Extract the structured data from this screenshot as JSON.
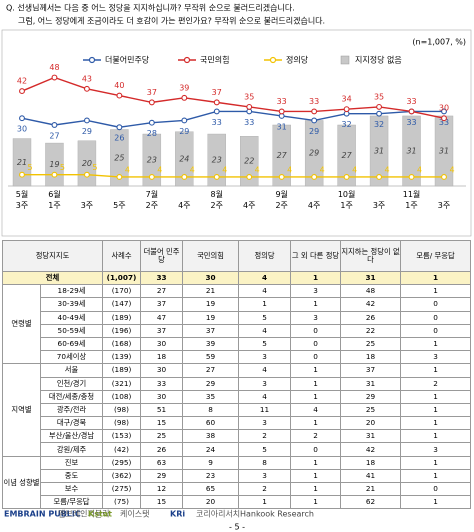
{
  "question": [
    "Q. 선생님께서는 다음 중 어느 정당을 지지하십니까? 무작위 순으로 불러드리겠습니다.",
    "그럼, 어느 정당에게 조금이라도 더 호감이 가는 편인가요? 무작위 순으로 불러드리겠습니다."
  ],
  "chart_data": {
    "type": "line-bar",
    "note": "(n=1,007, %)",
    "categories": [
      "5월 3주",
      "6월 1주",
      "3주",
      "5주",
      "7월 2주",
      "4주",
      "8월 2주",
      "4주",
      "9월 2주",
      "4주",
      "10월 1주",
      "3주",
      "11월 1주",
      "3주"
    ],
    "ylim": [
      0,
      50
    ],
    "series": [
      {
        "name": "더불어민주당",
        "color": "#2e5aa8",
        "kind": "line",
        "values": [
          30,
          27,
          29,
          26,
          28,
          29,
          33,
          33,
          31,
          29,
          32,
          32,
          33,
          33
        ]
      },
      {
        "name": "국민의힘",
        "color": "#d42a2a",
        "kind": "line",
        "values": [
          42,
          48,
          43,
          40,
          37,
          39,
          37,
          35,
          33,
          33,
          34,
          35,
          33,
          30
        ]
      },
      {
        "name": "정의당",
        "color": "#f2c200",
        "kind": "line",
        "values": [
          5,
          5,
          5,
          4,
          4,
          4,
          4,
          4,
          4,
          4,
          4,
          4,
          4,
          4
        ]
      },
      {
        "name": "지지정당 없음",
        "color": "#c8c8c8",
        "kind": "bar",
        "values": [
          21,
          19,
          20,
          25,
          23,
          24,
          23,
          22,
          27,
          29,
          27,
          31,
          31,
          31
        ]
      }
    ]
  },
  "table": {
    "header": [
      "정당지지도",
      "사례수",
      "더불어 민주당",
      "국민의힘",
      "정의당",
      "그 외 다른 정당",
      "지지하는 정당이 없다",
      "모름/ 무응답"
    ],
    "total": [
      "전체",
      "(1,007)",
      "33",
      "30",
      "4",
      "1",
      "31",
      "1"
    ],
    "groups": [
      {
        "name": "연령별",
        "rows": [
          [
            "18-29세",
            "(170)",
            "27",
            "21",
            "4",
            "3",
            "48",
            "1"
          ],
          [
            "30-39세",
            "(147)",
            "37",
            "19",
            "1",
            "1",
            "42",
            "0"
          ],
          [
            "40-49세",
            "(189)",
            "47",
            "19",
            "5",
            "3",
            "26",
            "0"
          ],
          [
            "50-59세",
            "(196)",
            "37",
            "37",
            "4",
            "0",
            "22",
            "0"
          ],
          [
            "60-69세",
            "(168)",
            "30",
            "39",
            "5",
            "0",
            "25",
            "1"
          ],
          [
            "70세이상",
            "(139)",
            "18",
            "59",
            "3",
            "0",
            "18",
            "3"
          ]
        ]
      },
      {
        "name": "지역별",
        "rows": [
          [
            "서울",
            "(189)",
            "30",
            "27",
            "4",
            "1",
            "37",
            "1"
          ],
          [
            "인천/경기",
            "(321)",
            "33",
            "29",
            "3",
            "1",
            "31",
            "2"
          ],
          [
            "대전/세종/충청",
            "(108)",
            "30",
            "35",
            "4",
            "1",
            "29",
            "1"
          ],
          [
            "광주/전라",
            "(98)",
            "51",
            "8",
            "11",
            "4",
            "25",
            "1"
          ],
          [
            "대구/경북",
            "(98)",
            "15",
            "60",
            "3",
            "1",
            "20",
            "1"
          ],
          [
            "부산/울산/경남",
            "(153)",
            "25",
            "38",
            "2",
            "2",
            "31",
            "1"
          ],
          [
            "강원/제주",
            "(42)",
            "26",
            "24",
            "5",
            "0",
            "42",
            "3"
          ]
        ]
      },
      {
        "name": "이념 성향별",
        "rows": [
          [
            "진보",
            "(295)",
            "63",
            "9",
            "8",
            "1",
            "18",
            "1"
          ],
          [
            "중도",
            "(362)",
            "29",
            "23",
            "3",
            "1",
            "41",
            "1"
          ],
          [
            "보수",
            "(275)",
            "12",
            "65",
            "2",
            "1",
            "21",
            "0"
          ],
          [
            "모름/무응답",
            "(75)",
            "15",
            "20",
            "1",
            "1",
            "62",
            "1"
          ]
        ]
      }
    ]
  },
  "footer": {
    "logos": [
      "EMBRAIN PUBLIC",
      "엠브레인퍼블릭",
      "Kstat",
      "케이스탯",
      "KRi",
      "코리아리서치",
      "Hankook Research"
    ],
    "page": "- 5 -"
  }
}
